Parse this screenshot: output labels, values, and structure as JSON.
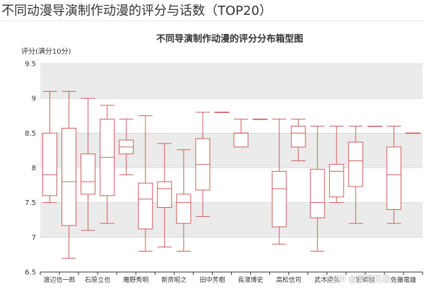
{
  "page": {
    "heading": "不同动漫导演制作动漫的评分与话数（TOP20）",
    "watermark": "CSDN @爱欲无极"
  },
  "colors": {
    "box_stroke": "#cd5c5c",
    "band_fill": "#ebebeb",
    "axis_text": "#333333",
    "grid": "#cccccc"
  },
  "chart_data": {
    "type": "boxplot",
    "title": "不同导演制作动漫的评分分布箱型图",
    "ylabel": "评分(满分10分)",
    "xlabel": "",
    "ylim": [
      6.5,
      9.5
    ],
    "yticks": [
      6.5,
      7,
      7.5,
      8,
      8.5,
      9,
      9.5
    ],
    "striped_background": true,
    "series": [
      {
        "category": "渡辺信一郎",
        "min": 7.5,
        "q1": 7.6,
        "median": 7.9,
        "q3": 8.5,
        "max": 9.1
      },
      {
        "category": "",
        "min": 6.7,
        "q1": 7.17,
        "median": 7.8,
        "q3": 8.57,
        "max": 9.1
      },
      {
        "category": "石原立也",
        "min": 7.1,
        "q1": 7.62,
        "median": 7.8,
        "q3": 8.2,
        "max": 9.0
      },
      {
        "category": "",
        "min": 7.2,
        "q1": 7.6,
        "median": 8.15,
        "q3": 8.7,
        "max": 8.9
      },
      {
        "category": "庵野秀明",
        "min": 7.9,
        "q1": 8.2,
        "median": 8.3,
        "q3": 8.4,
        "max": 8.7
      },
      {
        "category": "",
        "min": 6.8,
        "q1": 7.12,
        "median": 7.55,
        "q3": 7.78,
        "max": 8.75
      },
      {
        "category": "新房昭之",
        "min": 6.86,
        "q1": 7.43,
        "median": 7.7,
        "q3": 7.8,
        "max": 8.35
      },
      {
        "category": "",
        "min": 6.8,
        "q1": 7.2,
        "median": 7.5,
        "q3": 7.62,
        "max": 8.26
      },
      {
        "category": "田中芳樹",
        "min": 7.3,
        "q1": 7.68,
        "median": 8.05,
        "q3": 8.42,
        "max": 8.8
      },
      {
        "category": "",
        "min": 8.8,
        "q1": 8.8,
        "median": 8.8,
        "q3": 8.8,
        "max": 8.8
      },
      {
        "category": "長濱博史",
        "min": 8.3,
        "q1": 8.3,
        "median": 8.5,
        "q3": 8.5,
        "max": 8.7
      },
      {
        "category": "",
        "min": 8.7,
        "q1": 8.7,
        "median": 8.7,
        "q3": 8.7,
        "max": 8.7
      },
      {
        "category": "高松信司",
        "min": 6.9,
        "q1": 7.15,
        "median": 7.7,
        "q3": 7.95,
        "max": 8.7
      },
      {
        "category": "",
        "min": 8.1,
        "q1": 8.3,
        "median": 8.5,
        "q3": 8.6,
        "max": 8.7
      },
      {
        "category": "武本康弘",
        "min": 6.8,
        "q1": 7.28,
        "median": 7.5,
        "q3": 7.98,
        "max": 8.6
      },
      {
        "category": "",
        "min": 7.5,
        "q1": 7.58,
        "median": 7.95,
        "q3": 8.05,
        "max": 8.6
      },
      {
        "category": "宮崎駿",
        "min": 7.2,
        "q1": 7.73,
        "median": 8.1,
        "q3": 8.37,
        "max": 8.6
      },
      {
        "category": "",
        "min": 8.6,
        "q1": 8.6,
        "median": 8.6,
        "q3": 8.6,
        "max": 8.6
      },
      {
        "category": "佐藤竜雄",
        "min": 7.2,
        "q1": 7.4,
        "median": 7.9,
        "q3": 8.3,
        "max": 8.6
      },
      {
        "category": "",
        "min": 8.5,
        "q1": 8.5,
        "median": 8.5,
        "q3": 8.5,
        "max": 8.5
      }
    ]
  }
}
